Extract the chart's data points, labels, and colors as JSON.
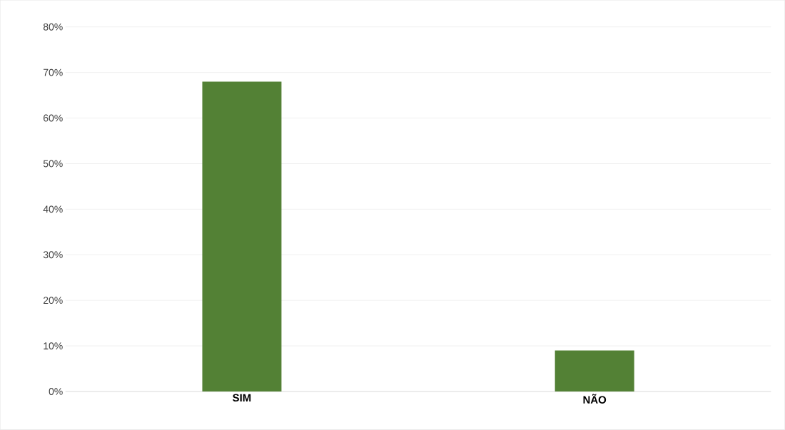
{
  "chart_data": {
    "type": "bar",
    "categories": [
      "SIM",
      "NÃO"
    ],
    "values": [
      68,
      9
    ],
    "color": "#538135",
    "ylim": [
      0,
      80
    ],
    "yticks": [
      {
        "value": 0,
        "label": "0%"
      },
      {
        "value": 10,
        "label": "10%"
      },
      {
        "value": 20,
        "label": "20%"
      },
      {
        "value": 30,
        "label": "30%"
      },
      {
        "value": 40,
        "label": "40%"
      },
      {
        "value": 50,
        "label": "50%"
      },
      {
        "value": 60,
        "label": "60%"
      },
      {
        "value": 70,
        "label": "70%"
      },
      {
        "value": 80,
        "label": "80%"
      }
    ],
    "grid": "y"
  }
}
